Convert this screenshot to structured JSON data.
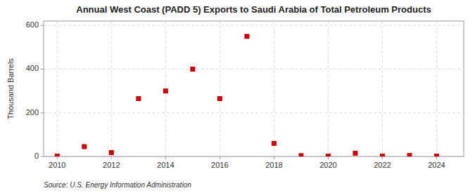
{
  "chart_data": {
    "type": "scatter",
    "title": "Annual West Coast (PADD 5) Exports to Saudi Arabia of Total Petroleum Products",
    "ylabel": "Thousand Barrels",
    "source": "Source: U.S. Energy Information Administration",
    "x": [
      2010,
      2011,
      2012,
      2013,
      2014,
      2015,
      2016,
      2017,
      2018,
      2019,
      2020,
      2021,
      2022,
      2023,
      2024
    ],
    "values": [
      2,
      45,
      18,
      265,
      300,
      400,
      265,
      550,
      60,
      4,
      2,
      15,
      2,
      5,
      2
    ],
    "color": "#cc0000",
    "marker": "square",
    "xlim": [
      2009.5,
      2025.0
    ],
    "ylim": [
      0,
      620
    ],
    "xticks": [
      2010,
      2012,
      2014,
      2016,
      2018,
      2020,
      2022,
      2024
    ],
    "yticks": [
      0,
      200,
      400,
      600
    ],
    "grid": true
  }
}
